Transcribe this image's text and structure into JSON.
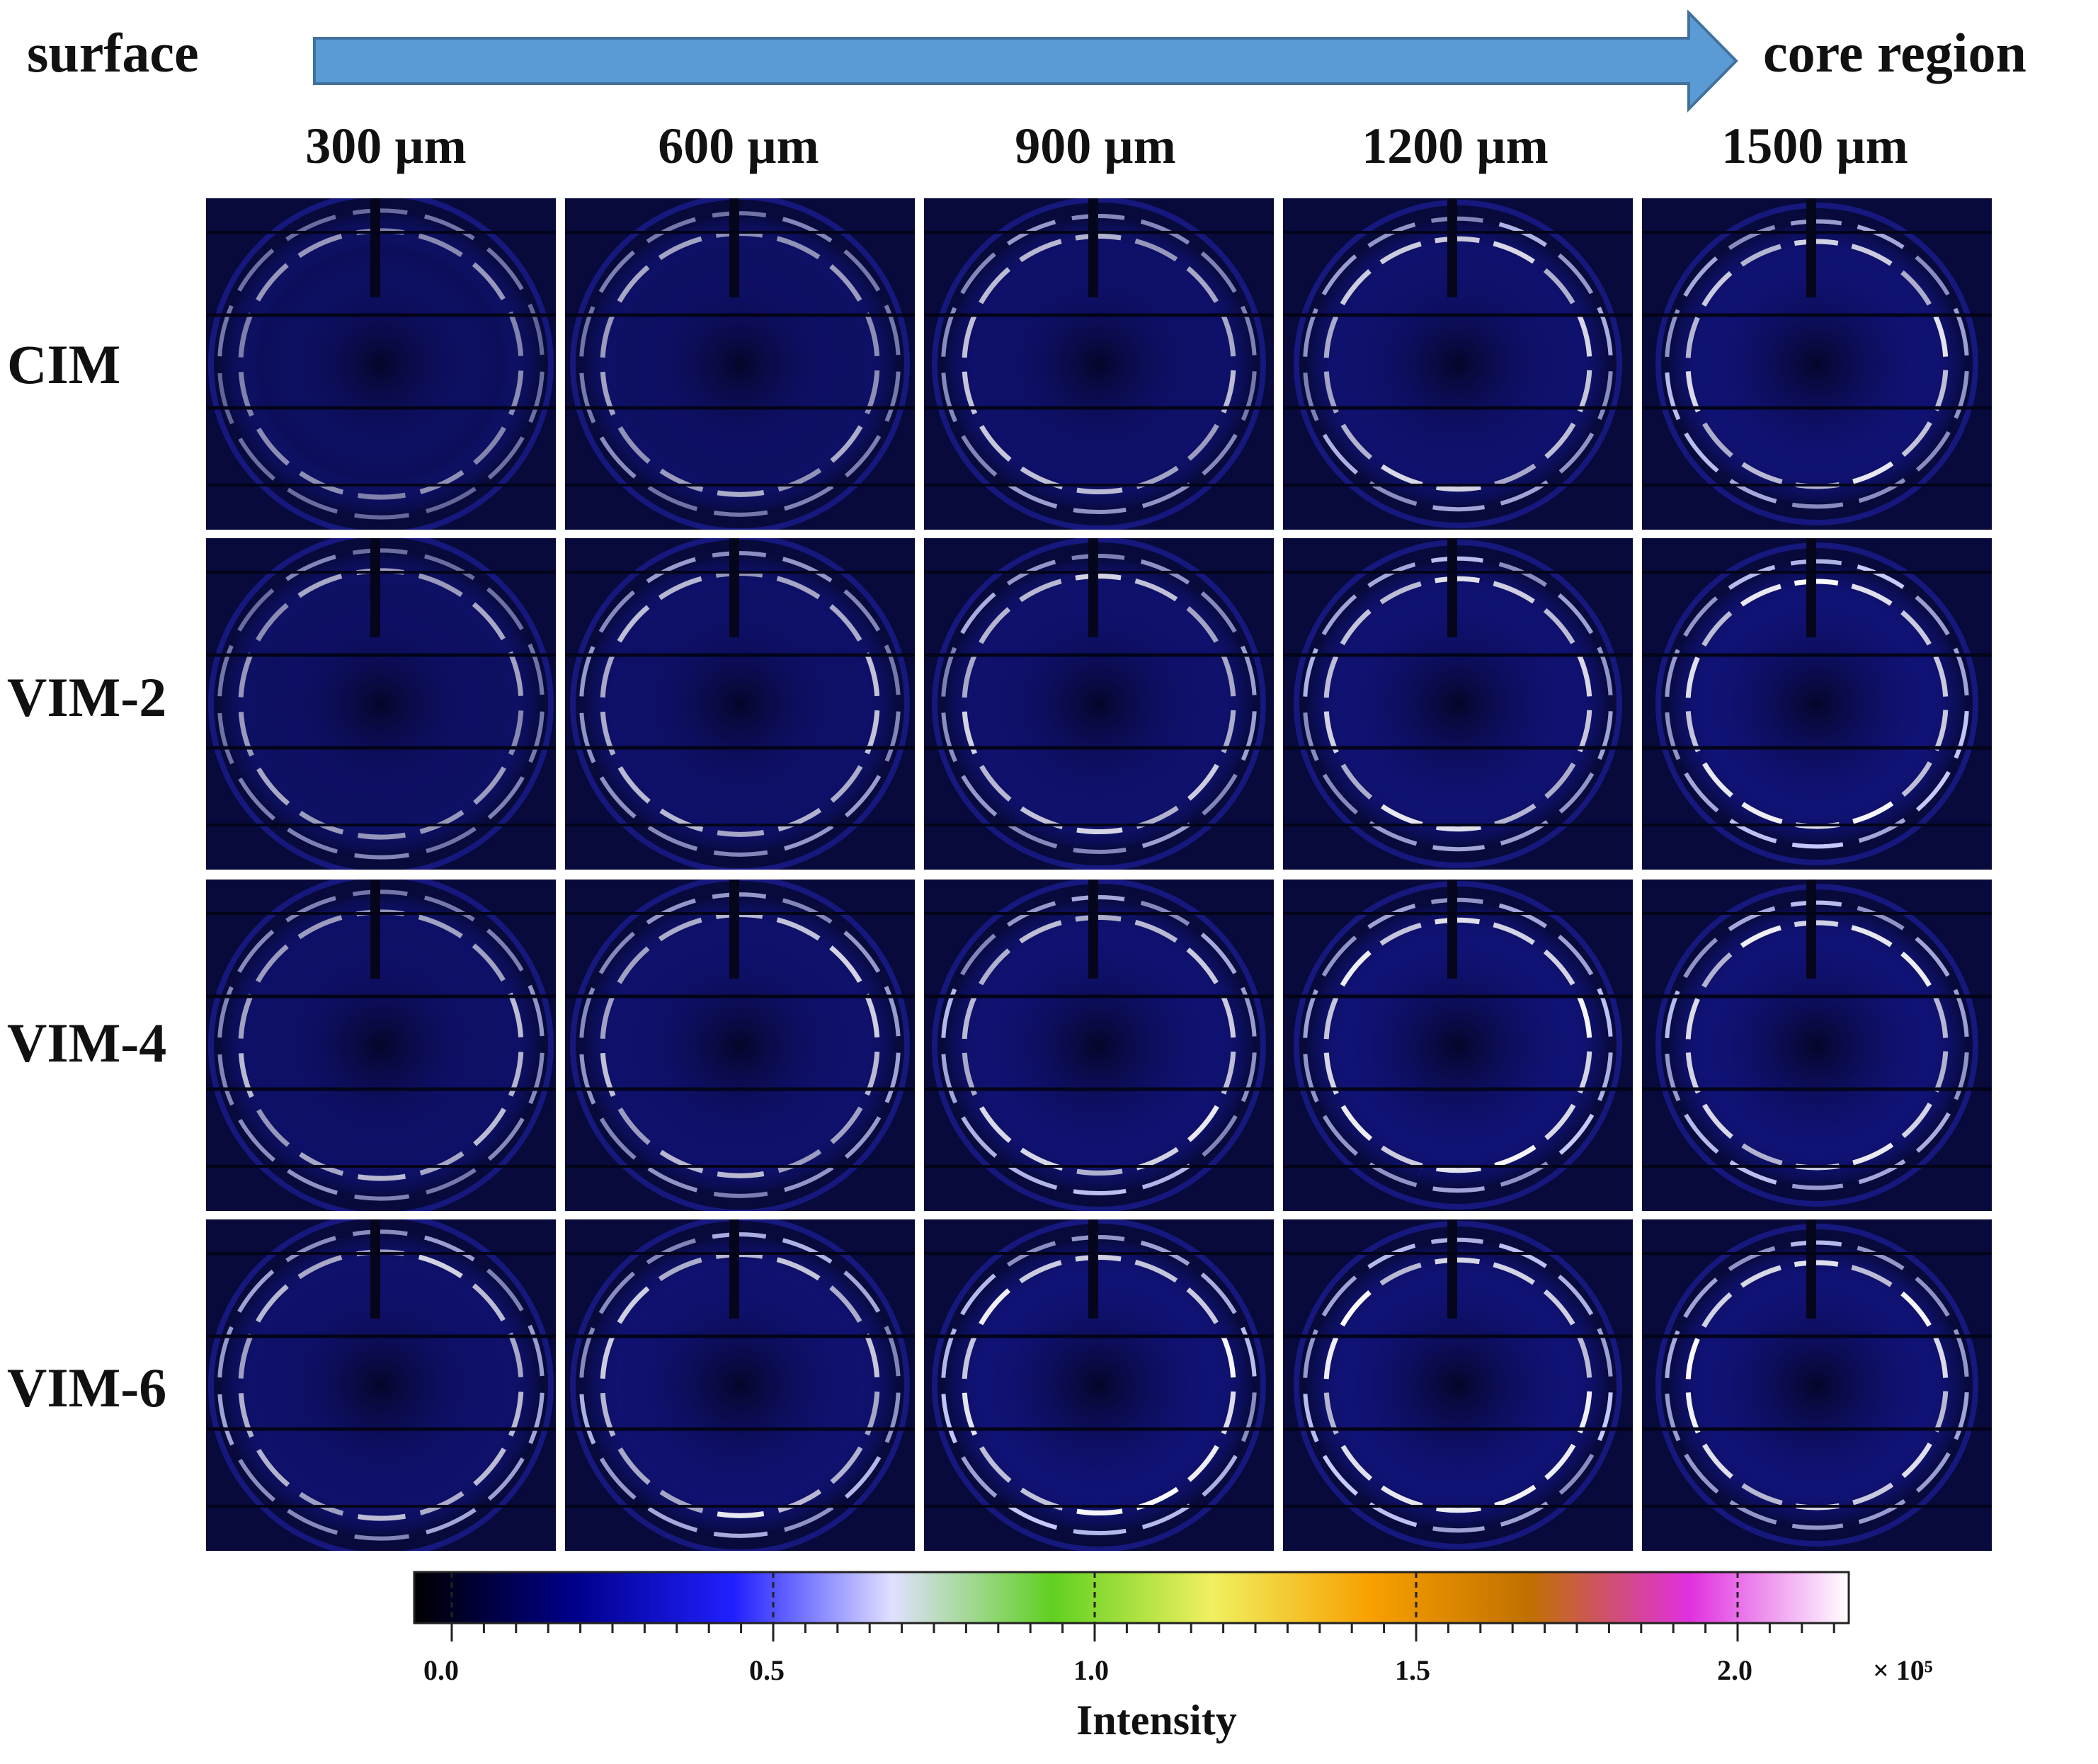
{
  "header": {
    "left_label": "surface",
    "right_label": "core region",
    "arrow_color": "#5b9bd5"
  },
  "columns": [
    "300 µm",
    "600 µm",
    "900 µm",
    "1200 µm",
    "1500 µm"
  ],
  "rows": [
    "CIM",
    "VIM-2",
    "VIM-4",
    "VIM-6"
  ],
  "panel_background_color": "#070a3a",
  "colorbar": {
    "tick_labels": [
      "0.0",
      "0.5",
      "1.0",
      "1.5",
      "2.0"
    ],
    "exponent_label": "× 10⁵",
    "title": "Intensity",
    "colormap": [
      "#000000",
      "#00008b",
      "#2020ff",
      "#e0e0ff",
      "#60d020",
      "#f0f060",
      "#f8a000",
      "#c07000",
      "#e030e0",
      "#ffffff"
    ]
  }
}
